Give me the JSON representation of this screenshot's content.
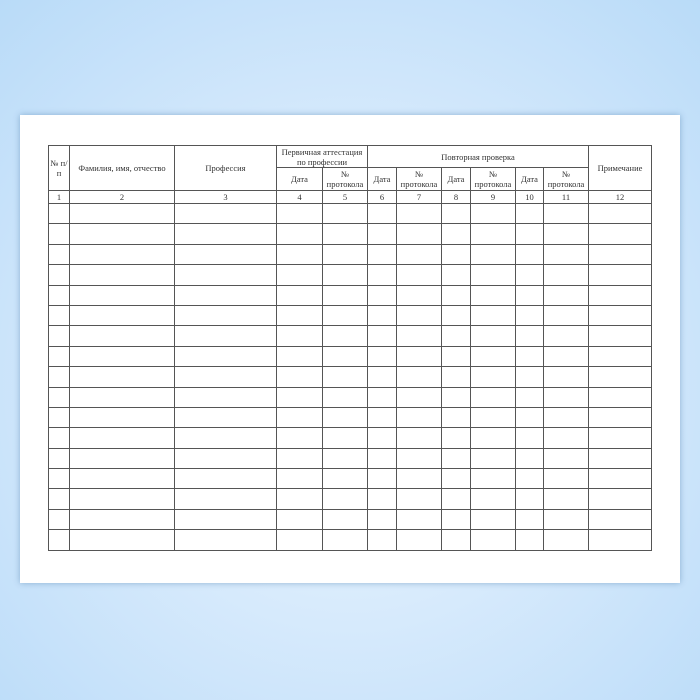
{
  "form": {
    "headers": {
      "num": "№ п/п",
      "name": "Фамилия, имя, отчество",
      "profession": "Профессия",
      "primary_group": "Первичная аттестация по профессии",
      "repeat_group": "Повторная проверка",
      "note": "Примечание",
      "date": "Дата",
      "protocol": "№ протокола"
    },
    "column_numbers": [
      "1",
      "2",
      "3",
      "4",
      "5",
      "6",
      "7",
      "8",
      "9",
      "10",
      "11",
      "12"
    ],
    "empty_rows": 17
  },
  "colors": {
    "background": "#cfe6fb",
    "paper": "#ffffff",
    "lines": "#555555"
  }
}
